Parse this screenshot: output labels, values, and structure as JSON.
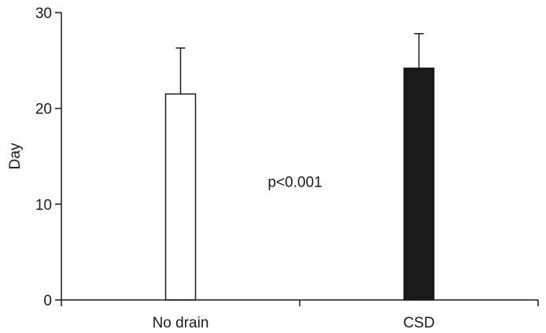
{
  "chart_data": {
    "type": "bar",
    "categories": [
      "No drain",
      "CSD"
    ],
    "values": [
      21.5,
      24.2
    ],
    "errors": [
      4.8,
      3.6
    ],
    "bar_fills": [
      "#ffffff",
      "#1a1a1a"
    ],
    "ylabel": "Day",
    "xlabel": "",
    "ylim": [
      0,
      30
    ],
    "yticks": [
      0,
      10,
      20,
      30
    ],
    "annotation": "p<0.001",
    "grid": false
  }
}
